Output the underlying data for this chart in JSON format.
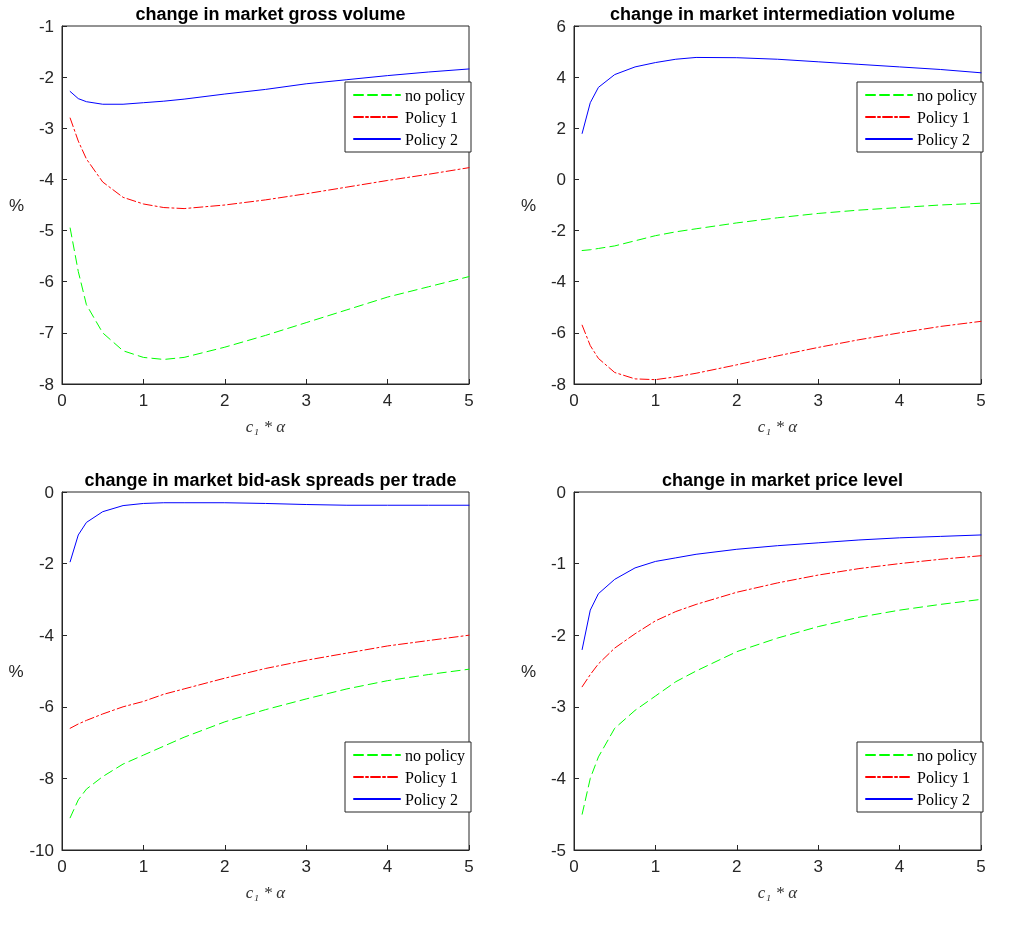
{
  "chart_data": [
    {
      "type": "line",
      "title": "change in market gross volume",
      "xlabel": "c₁ * α",
      "ylabel": "%",
      "x": [
        0.1,
        0.2,
        0.3,
        0.5,
        0.75,
        1,
        1.25,
        1.5,
        2,
        2.5,
        3,
        3.5,
        4,
        4.5,
        5
      ],
      "xlim": [
        0,
        5
      ],
      "xticks": [
        0,
        1,
        2,
        3,
        4,
        5
      ],
      "ylim": [
        -8,
        -1
      ],
      "yticks": [
        -8,
        -7,
        -6,
        -5,
        -4,
        -3,
        -2,
        -1
      ],
      "grid": false,
      "legend": "top right",
      "marker": "none",
      "series": [
        {
          "name": "no policy",
          "color": "#00ff00",
          "line_style": "dashed",
          "values": [
            -4.95,
            -5.8,
            -6.45,
            -7.0,
            -7.35,
            -7.48,
            -7.52,
            -7.48,
            -7.28,
            -7.05,
            -6.8,
            -6.55,
            -6.3,
            -6.1,
            -5.9
          ]
        },
        {
          "name": "Policy 1",
          "color": "#ff0000",
          "line_style": "dashdot",
          "values": [
            -2.8,
            -3.25,
            -3.6,
            -4.05,
            -4.35,
            -4.48,
            -4.55,
            -4.57,
            -4.5,
            -4.4,
            -4.28,
            -4.15,
            -4.02,
            -3.9,
            -3.77
          ]
        },
        {
          "name": "Policy 2",
          "color": "#0000ff",
          "line_style": "solid",
          "values": [
            -2.28,
            -2.42,
            -2.48,
            -2.53,
            -2.53,
            -2.5,
            -2.47,
            -2.43,
            -2.33,
            -2.24,
            -2.13,
            -2.05,
            -1.97,
            -1.9,
            -1.84
          ]
        }
      ]
    },
    {
      "type": "line",
      "title": "change in market intermediation volume",
      "xlabel": "c₁ * α",
      "ylabel": "%",
      "x": [
        0.1,
        0.2,
        0.3,
        0.5,
        0.75,
        1,
        1.25,
        1.5,
        2,
        2.5,
        3,
        3.5,
        4,
        4.5,
        5
      ],
      "xlim": [
        0,
        5
      ],
      "xticks": [
        0,
        1,
        2,
        3,
        4,
        5
      ],
      "ylim": [
        -8,
        6
      ],
      "yticks": [
        -8,
        -6,
        -4,
        -2,
        0,
        2,
        4,
        6
      ],
      "grid": false,
      "legend": "top right",
      "marker": "none",
      "series": [
        {
          "name": "no policy",
          "color": "#00ff00",
          "line_style": "dashed",
          "values": [
            -2.78,
            -2.75,
            -2.7,
            -2.6,
            -2.4,
            -2.2,
            -2.05,
            -1.93,
            -1.7,
            -1.5,
            -1.33,
            -1.2,
            -1.1,
            -1.0,
            -0.93
          ]
        },
        {
          "name": "Policy 1",
          "color": "#ff0000",
          "line_style": "dashdot",
          "values": [
            -5.7,
            -6.5,
            -7.0,
            -7.55,
            -7.8,
            -7.83,
            -7.72,
            -7.58,
            -7.25,
            -6.9,
            -6.57,
            -6.27,
            -6.0,
            -5.75,
            -5.55
          ]
        },
        {
          "name": "Policy 2",
          "color": "#0000ff",
          "line_style": "solid",
          "values": [
            1.8,
            3.0,
            3.6,
            4.1,
            4.4,
            4.57,
            4.7,
            4.77,
            4.76,
            4.7,
            4.6,
            4.5,
            4.4,
            4.3,
            4.17
          ]
        }
      ]
    },
    {
      "type": "line",
      "title": "change in market bid-ask spreads per trade",
      "xlabel": "c₁ * α",
      "ylabel": "%",
      "x": [
        0.1,
        0.2,
        0.3,
        0.5,
        0.75,
        1,
        1.25,
        1.5,
        2,
        2.5,
        3,
        3.5,
        4,
        4.5,
        5
      ],
      "xlim": [
        0,
        5
      ],
      "xticks": [
        0,
        1,
        2,
        3,
        4,
        5
      ],
      "ylim": [
        -10,
        0
      ],
      "yticks": [
        -10,
        -8,
        -6,
        -4,
        -2,
        0
      ],
      "grid": false,
      "legend": "bottom right",
      "marker": "none",
      "series": [
        {
          "name": "no policy",
          "color": "#00ff00",
          "line_style": "dashed",
          "values": [
            -9.1,
            -8.6,
            -8.3,
            -7.95,
            -7.6,
            -7.35,
            -7.1,
            -6.85,
            -6.42,
            -6.08,
            -5.78,
            -5.5,
            -5.27,
            -5.1,
            -4.95
          ]
        },
        {
          "name": "Policy 1",
          "color": "#ff0000",
          "line_style": "dashdot",
          "values": [
            -6.6,
            -6.48,
            -6.38,
            -6.2,
            -6.0,
            -5.85,
            -5.65,
            -5.5,
            -5.2,
            -4.93,
            -4.7,
            -4.5,
            -4.3,
            -4.15,
            -4.0
          ]
        },
        {
          "name": "Policy 2",
          "color": "#0000ff",
          "line_style": "solid",
          "values": [
            -1.95,
            -1.2,
            -0.85,
            -0.55,
            -0.38,
            -0.32,
            -0.3,
            -0.3,
            -0.3,
            -0.32,
            -0.35,
            -0.37,
            -0.37,
            -0.37,
            -0.37
          ]
        }
      ]
    },
    {
      "type": "line",
      "title": "change in market price level",
      "xlabel": "c₁ * α",
      "ylabel": "%",
      "x": [
        0.1,
        0.2,
        0.3,
        0.5,
        0.75,
        1,
        1.25,
        1.5,
        2,
        2.5,
        3,
        3.5,
        4,
        4.5,
        5
      ],
      "xlim": [
        0,
        5
      ],
      "xticks": [
        0,
        1,
        2,
        3,
        4,
        5
      ],
      "ylim": [
        -5,
        0
      ],
      "yticks": [
        -5,
        -4,
        -3,
        -2,
        -1,
        0
      ],
      "grid": false,
      "legend": "bottom right",
      "marker": "none",
      "series": [
        {
          "name": "no policy",
          "color": "#00ff00",
          "line_style": "dashed",
          "values": [
            -4.5,
            -4.0,
            -3.7,
            -3.3,
            -3.05,
            -2.85,
            -2.65,
            -2.5,
            -2.23,
            -2.04,
            -1.88,
            -1.75,
            -1.65,
            -1.57,
            -1.5
          ]
        },
        {
          "name": "Policy 1",
          "color": "#ff0000",
          "line_style": "dashdot",
          "values": [
            -2.72,
            -2.55,
            -2.4,
            -2.18,
            -1.98,
            -1.8,
            -1.67,
            -1.57,
            -1.4,
            -1.27,
            -1.16,
            -1.07,
            -1.0,
            -0.94,
            -0.89
          ]
        },
        {
          "name": "Policy 2",
          "color": "#0000ff",
          "line_style": "solid",
          "values": [
            -2.2,
            -1.65,
            -1.42,
            -1.22,
            -1.06,
            -0.97,
            -0.92,
            -0.87,
            -0.8,
            -0.75,
            -0.71,
            -0.67,
            -0.64,
            -0.62,
            -0.6
          ]
        }
      ]
    }
  ]
}
